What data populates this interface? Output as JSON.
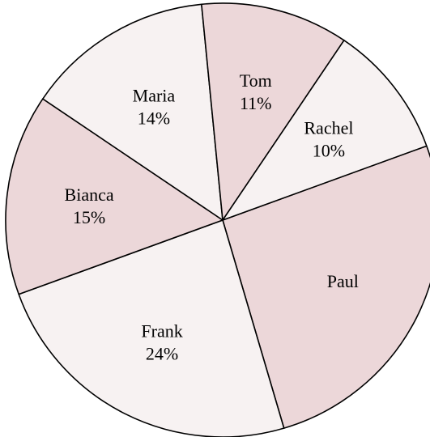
{
  "chart_data": {
    "type": "pie",
    "title": "",
    "start_angle_deg": 70,
    "direction": "clockwise",
    "slices": [
      {
        "label": "Paul",
        "value": 26,
        "value_label": "",
        "color": "#ecd7d9"
      },
      {
        "label": "Frank",
        "value": 24,
        "value_label": "24%",
        "color": "#f7f2f2"
      },
      {
        "label": "Bianca",
        "value": 15,
        "value_label": "15%",
        "color": "#ecd7d9"
      },
      {
        "label": "Maria",
        "value": 14,
        "value_label": "14%",
        "color": "#f7f2f2"
      },
      {
        "label": "Tom",
        "value": 11,
        "value_label": "11%",
        "color": "#ecd7d9"
      },
      {
        "label": "Rachel",
        "value": 10,
        "value_label": "10%",
        "color": "#f7f2f2"
      }
    ],
    "legend": "none"
  }
}
